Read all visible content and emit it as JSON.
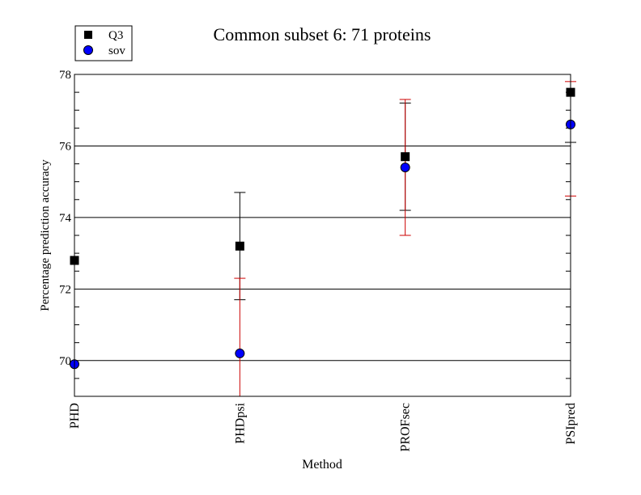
{
  "chart_data": {
    "type": "scatter",
    "title": "Common subset 6: 71 proteins",
    "xlabel": "Method",
    "ylabel": "Percentage prediction accuracy",
    "categories": [
      "PHD",
      "PHDpsi",
      "PROFsec",
      "PSIpred"
    ],
    "ylim": [
      69,
      78
    ],
    "yticks": [
      70,
      72,
      74,
      76,
      78
    ],
    "grid": true,
    "legend_position": "top-left",
    "series": [
      {
        "name": "Q3",
        "marker": "square",
        "color": "#000000",
        "error_color": "#000000",
        "values": [
          72.8,
          73.2,
          75.7,
          77.5
        ],
        "error_low": [
          null,
          71.7,
          74.2,
          76.1
        ],
        "error_high": [
          null,
          74.7,
          77.2,
          null
        ]
      },
      {
        "name": "sov",
        "marker": "circle",
        "color": "#0000ff",
        "error_color": "#cc0000",
        "values": [
          69.9,
          70.2,
          75.4,
          76.6
        ],
        "error_low": [
          null,
          69.0,
          73.5,
          74.6
        ],
        "error_high": [
          null,
          72.3,
          77.3,
          77.8
        ]
      }
    ]
  }
}
